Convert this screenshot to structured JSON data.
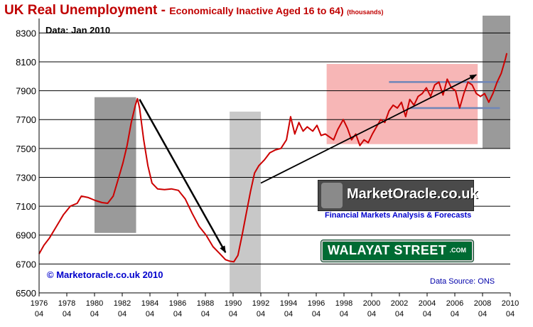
{
  "title": {
    "main": "UK  Real Unemployment - ",
    "sub": "Economically Inactive Aged 16 to 64)",
    "units": "(thousands)"
  },
  "data_note": "Data: Jan 2010",
  "copyright": "© Marketoracle.co.uk 2010",
  "source": "Data Source: ONS",
  "logos": {
    "market_oracle": "MarketOracle.co.uk",
    "market_oracle_tagline": "Financial Markets Analysis & Forecasts",
    "walayat": "WALAYAT STREET",
    "walayat_suffix": ".COM"
  },
  "colors": {
    "line": "#cc0000",
    "title": "#c00000",
    "grey_box": "#9a9a9a",
    "light_grey_box": "#c8c8c8",
    "pink_box": "#f7b6b6",
    "support_line": "#6f86b8",
    "grid": "#000000"
  },
  "chart_data": {
    "type": "line",
    "xlabel": "",
    "ylabel": "",
    "ylim": [
      6500,
      8400
    ],
    "xlim": [
      1976.25,
      2010.25
    ],
    "y_ticks": [
      6500,
      6700,
      6900,
      7100,
      7300,
      7500,
      7700,
      7900,
      8100,
      8300
    ],
    "grid": "horizontal",
    "x_ticks": [
      {
        "year": "1976",
        "q": "04",
        "x": 1976.25
      },
      {
        "year": "1978",
        "q": "04",
        "x": 1978.25
      },
      {
        "year": "1980",
        "q": "04",
        "x": 1980.25
      },
      {
        "year": "1982",
        "q": "04",
        "x": 1982.25
      },
      {
        "year": "1984",
        "q": "04",
        "x": 1984.25
      },
      {
        "year": "1986",
        "q": "04",
        "x": 1986.25
      },
      {
        "year": "1988",
        "q": "04",
        "x": 1988.25
      },
      {
        "year": "1990",
        "q": "04",
        "x": 1990.25
      },
      {
        "year": "1992",
        "q": "04",
        "x": 1992.25
      },
      {
        "year": "1994",
        "q": "04",
        "x": 1994.25
      },
      {
        "year": "1996",
        "q": "04",
        "x": 1996.25
      },
      {
        "year": "1998",
        "q": "04",
        "x": 1998.25
      },
      {
        "year": "2000",
        "q": "04",
        "x": 2000.25
      },
      {
        "year": "2002",
        "q": "04",
        "x": 2002.25
      },
      {
        "year": "2004",
        "q": "04",
        "x": 2004.25
      },
      {
        "year": "2006",
        "q": "04",
        "x": 2006.25
      },
      {
        "year": "2008",
        "q": "04",
        "x": 2008.25
      },
      {
        "year": "2010",
        "q": "04",
        "x": 2010.25
      }
    ],
    "series": [
      {
        "points": [
          [
            1976.25,
            6770
          ],
          [
            1976.6,
            6830
          ],
          [
            1977.0,
            6880
          ],
          [
            1977.5,
            6960
          ],
          [
            1978.0,
            7040
          ],
          [
            1978.5,
            7100
          ],
          [
            1979.0,
            7120
          ],
          [
            1979.3,
            7170
          ],
          [
            1979.8,
            7160
          ],
          [
            1980.3,
            7140
          ],
          [
            1980.8,
            7125
          ],
          [
            1981.2,
            7120
          ],
          [
            1981.6,
            7170
          ],
          [
            1982.0,
            7300
          ],
          [
            1982.3,
            7400
          ],
          [
            1982.6,
            7520
          ],
          [
            1982.9,
            7680
          ],
          [
            1983.2,
            7800
          ],
          [
            1983.35,
            7845
          ],
          [
            1983.5,
            7780
          ],
          [
            1983.8,
            7560
          ],
          [
            1984.1,
            7380
          ],
          [
            1984.4,
            7260
          ],
          [
            1984.8,
            7220
          ],
          [
            1985.3,
            7215
          ],
          [
            1985.8,
            7220
          ],
          [
            1986.3,
            7210
          ],
          [
            1986.8,
            7150
          ],
          [
            1987.3,
            7050
          ],
          [
            1987.8,
            6960
          ],
          [
            1988.3,
            6900
          ],
          [
            1988.8,
            6820
          ],
          [
            1989.3,
            6770
          ],
          [
            1989.7,
            6730
          ],
          [
            1990.0,
            6720
          ],
          [
            1990.3,
            6715
          ],
          [
            1990.6,
            6760
          ],
          [
            1990.9,
            6900
          ],
          [
            1991.2,
            7050
          ],
          [
            1991.5,
            7200
          ],
          [
            1991.8,
            7330
          ],
          [
            1992.1,
            7380
          ],
          [
            1992.5,
            7420
          ],
          [
            1992.9,
            7470
          ],
          [
            1993.3,
            7490
          ],
          [
            1993.7,
            7500
          ],
          [
            1994.1,
            7560
          ],
          [
            1994.4,
            7720
          ],
          [
            1994.7,
            7600
          ],
          [
            1995.0,
            7680
          ],
          [
            1995.3,
            7620
          ],
          [
            1995.6,
            7650
          ],
          [
            1996.0,
            7620
          ],
          [
            1996.3,
            7660
          ],
          [
            1996.6,
            7590
          ],
          [
            1996.9,
            7600
          ],
          [
            1997.2,
            7580
          ],
          [
            1997.5,
            7560
          ],
          [
            1997.8,
            7630
          ],
          [
            1998.2,
            7700
          ],
          [
            1998.5,
            7640
          ],
          [
            1998.8,
            7560
          ],
          [
            1999.1,
            7600
          ],
          [
            1999.4,
            7520
          ],
          [
            1999.7,
            7560
          ],
          [
            2000.0,
            7540
          ],
          [
            2000.3,
            7600
          ],
          [
            2000.6,
            7650
          ],
          [
            2000.9,
            7700
          ],
          [
            2001.2,
            7680
          ],
          [
            2001.5,
            7760
          ],
          [
            2001.8,
            7800
          ],
          [
            2002.1,
            7780
          ],
          [
            2002.4,
            7820
          ],
          [
            2002.7,
            7720
          ],
          [
            2003.0,
            7840
          ],
          [
            2003.3,
            7800
          ],
          [
            2003.6,
            7860
          ],
          [
            2003.9,
            7880
          ],
          [
            2004.2,
            7920
          ],
          [
            2004.5,
            7860
          ],
          [
            2004.8,
            7940
          ],
          [
            2005.1,
            7960
          ],
          [
            2005.4,
            7870
          ],
          [
            2005.7,
            7980
          ],
          [
            2006.0,
            7920
          ],
          [
            2006.3,
            7900
          ],
          [
            2006.6,
            7780
          ],
          [
            2006.9,
            7880
          ],
          [
            2007.2,
            7960
          ],
          [
            2007.5,
            7940
          ],
          [
            2007.8,
            7880
          ],
          [
            2008.1,
            7860
          ],
          [
            2008.4,
            7880
          ],
          [
            2008.7,
            7820
          ],
          [
            2009.0,
            7880
          ],
          [
            2009.3,
            7960
          ],
          [
            2009.6,
            8020
          ],
          [
            2009.9,
            8120
          ],
          [
            2010.0,
            8160
          ]
        ]
      }
    ],
    "annotations": {
      "grey_boxes": [
        {
          "x": [
            1980.25,
            1983.25
          ],
          "y": [
            6915,
            7855
          ]
        },
        {
          "x": [
            2008.25,
            2010.25
          ],
          "y": [
            7500,
            8440
          ]
        }
      ],
      "light_grey_boxes": [
        {
          "x": [
            1990.0,
            1992.25
          ],
          "y": [
            6500,
            7755
          ]
        }
      ],
      "pink_boxes": [
        {
          "x": [
            1997.0,
            2007.9
          ],
          "y": [
            7530,
            8085
          ]
        }
      ],
      "support_lines": [
        {
          "x": [
            2001.5,
            2009.5
          ],
          "y": [
            7960,
            7960
          ]
        },
        {
          "x": [
            2003.0,
            2009.5
          ],
          "y": [
            7780,
            7780
          ]
        }
      ],
      "arrows": [
        {
          "from": [
            1983.5,
            7840
          ],
          "to": [
            1989.7,
            6780
          ]
        },
        {
          "from": [
            1992.25,
            7260
          ],
          "to": [
            2007.8,
            8010
          ]
        }
      ]
    }
  }
}
